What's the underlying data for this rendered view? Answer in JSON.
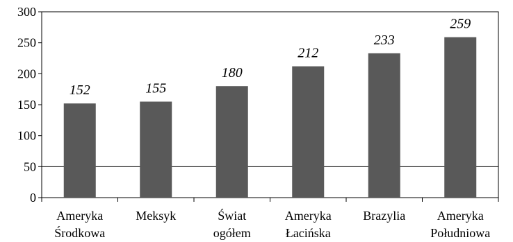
{
  "chart_data": {
    "type": "bar",
    "categories": [
      [
        "Ameryka",
        "Środkowa"
      ],
      [
        "Meksyk"
      ],
      [
        "Świat",
        "ogółem"
      ],
      [
        "Ameryka",
        "Łacińska"
      ],
      [
        "Brazylia"
      ],
      [
        "Ameryka",
        "Południowa"
      ]
    ],
    "values": [
      152,
      155,
      180,
      212,
      233,
      259
    ],
    "ylim": [
      0,
      300
    ],
    "yticks": [
      0,
      50,
      100,
      150,
      200,
      250,
      300
    ],
    "gridlines_y": [
      50
    ],
    "title": "",
    "xlabel": "",
    "ylabel": "",
    "bar_color": "#595959",
    "data_labels": true
  }
}
